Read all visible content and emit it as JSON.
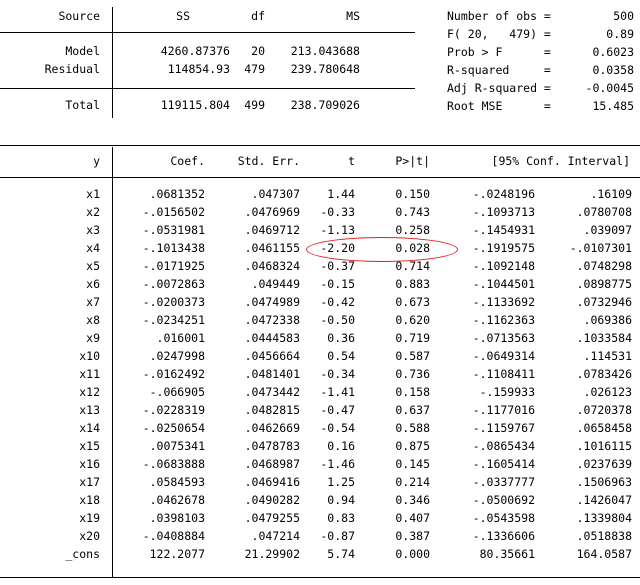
{
  "anova": {
    "headers": {
      "source": "Source",
      "ss": "SS",
      "df": "df",
      "ms": "MS"
    },
    "rows": [
      {
        "source": "Model",
        "ss": "4260.87376",
        "df": "20",
        "ms": "213.043688"
      },
      {
        "source": "Residual",
        "ss": "114854.93",
        "df": "479",
        "ms": "239.780648"
      },
      {
        "source": "Total",
        "ss": "119115.804",
        "df": "499",
        "ms": "238.709026"
      }
    ]
  },
  "stats": [
    {
      "label": "Number of obs =",
      "value": "500"
    },
    {
      "label": "F( 20,   479) =",
      "value": "0.89"
    },
    {
      "label": "Prob > F      =",
      "value": "0.6023"
    },
    {
      "label": "R-squared     =",
      "value": "0.0358"
    },
    {
      "label": "Adj R-squared =",
      "value": "-0.0045"
    },
    {
      "label": "Root MSE      =",
      "value": "15.485"
    }
  ],
  "coef": {
    "headers": {
      "y": "y",
      "coef": "Coef.",
      "se": "Std. Err.",
      "t": "t",
      "p": "P>|t|",
      "ci": "[95% Conf. Interval]"
    },
    "rows": [
      {
        "var": "x1",
        "coef": ".0681352",
        "se": ".047307",
        "t": "1.44",
        "p": "0.150",
        "lo": "-.0248196",
        "hi": ".16109"
      },
      {
        "var": "x2",
        "coef": "-.0156502",
        "se": ".0476969",
        "t": "-0.33",
        "p": "0.743",
        "lo": "-.1093713",
        "hi": ".0780708"
      },
      {
        "var": "x3",
        "coef": "-.0531981",
        "se": ".0469712",
        "t": "-1.13",
        "p": "0.258",
        "lo": "-.1454931",
        "hi": ".039097"
      },
      {
        "var": "x4",
        "coef": "-.1013438",
        "se": ".0461155",
        "t": "-2.20",
        "p": "0.028",
        "lo": "-.1919575",
        "hi": "-.0107301"
      },
      {
        "var": "x5",
        "coef": "-.0171925",
        "se": ".0468324",
        "t": "-0.37",
        "p": "0.714",
        "lo": "-.1092148",
        "hi": ".0748298"
      },
      {
        "var": "x6",
        "coef": "-.0072863",
        "se": ".049449",
        "t": "-0.15",
        "p": "0.883",
        "lo": "-.1044501",
        "hi": ".0898775"
      },
      {
        "var": "x7",
        "coef": "-.0200373",
        "se": ".0474989",
        "t": "-0.42",
        "p": "0.673",
        "lo": "-.1133692",
        "hi": ".0732946"
      },
      {
        "var": "x8",
        "coef": "-.0234251",
        "se": ".0472338",
        "t": "-0.50",
        "p": "0.620",
        "lo": "-.1162363",
        "hi": ".069386"
      },
      {
        "var": "x9",
        "coef": ".016001",
        "se": ".0444583",
        "t": "0.36",
        "p": "0.719",
        "lo": "-.0713563",
        "hi": ".1033584"
      },
      {
        "var": "x10",
        "coef": ".0247998",
        "se": ".0456664",
        "t": "0.54",
        "p": "0.587",
        "lo": "-.0649314",
        "hi": ".114531"
      },
      {
        "var": "x11",
        "coef": "-.0162492",
        "se": ".0481401",
        "t": "-0.34",
        "p": "0.736",
        "lo": "-.1108411",
        "hi": ".0783426"
      },
      {
        "var": "x12",
        "coef": "-.066905",
        "se": ".0473442",
        "t": "-1.41",
        "p": "0.158",
        "lo": "-.159933",
        "hi": ".026123"
      },
      {
        "var": "x13",
        "coef": "-.0228319",
        "se": ".0482815",
        "t": "-0.47",
        "p": "0.637",
        "lo": "-.1177016",
        "hi": ".0720378"
      },
      {
        "var": "x14",
        "coef": "-.0250654",
        "se": ".0462669",
        "t": "-0.54",
        "p": "0.588",
        "lo": "-.1159767",
        "hi": ".0658458"
      },
      {
        "var": "x15",
        "coef": ".0075341",
        "se": ".0478783",
        "t": "0.16",
        "p": "0.875",
        "lo": "-.0865434",
        "hi": ".1016115"
      },
      {
        "var": "x16",
        "coef": "-.0683888",
        "se": ".0468987",
        "t": "-1.46",
        "p": "0.145",
        "lo": "-.1605414",
        "hi": ".0237639"
      },
      {
        "var": "x17",
        "coef": ".0584593",
        "se": ".0469416",
        "t": "1.25",
        "p": "0.214",
        "lo": "-.0337777",
        "hi": ".1506963"
      },
      {
        "var": "x18",
        "coef": ".0462678",
        "se": ".0490282",
        "t": "0.94",
        "p": "0.346",
        "lo": "-.0500692",
        "hi": ".1426047"
      },
      {
        "var": "x19",
        "coef": ".0398103",
        "se": ".0479255",
        "t": "0.83",
        "p": "0.407",
        "lo": "-.0543598",
        "hi": ".1339804"
      },
      {
        "var": "x20",
        "coef": "-.0408884",
        "se": ".047214",
        "t": "-0.87",
        "p": "0.387",
        "lo": "-.1336606",
        "hi": ".0518838"
      },
      {
        "var": "_cons",
        "coef": "122.2077",
        "se": "21.29902",
        "t": "5.74",
        "p": "0.000",
        "lo": "80.35661",
        "hi": "164.0587"
      }
    ]
  },
  "highlight": {
    "row_var": "x4",
    "color": "#e02020"
  }
}
